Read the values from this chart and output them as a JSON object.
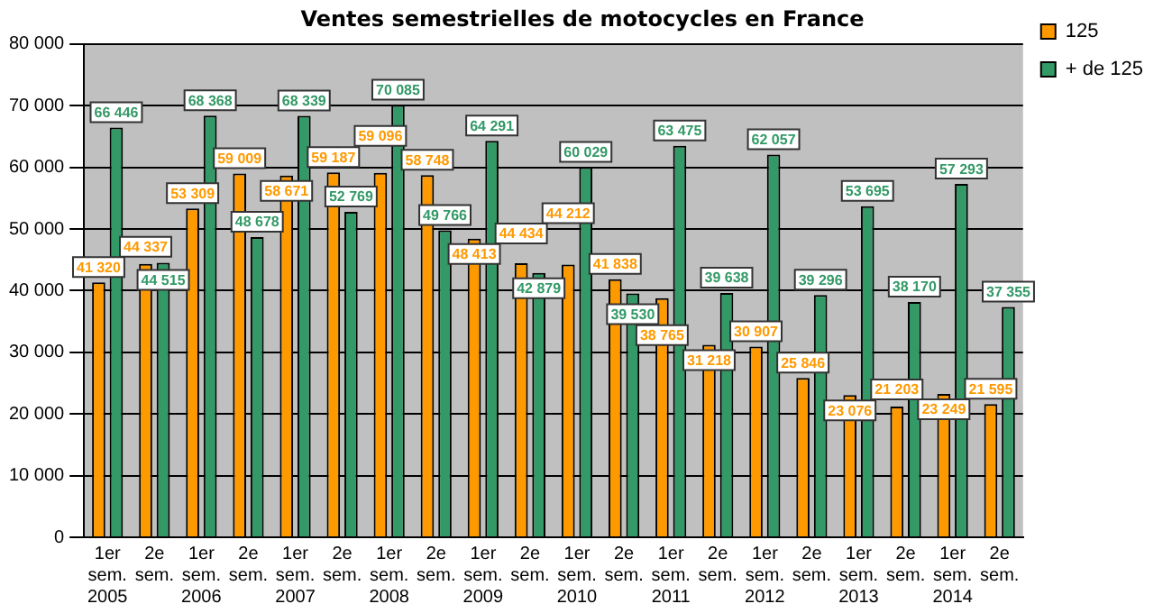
{
  "chart_data": {
    "type": "bar",
    "title": "Ventes semestrielles de motocycles en France",
    "categories": [
      "1er\nsem.\n2005",
      "2e\nsem.",
      "1er\nsem.\n2006",
      "2e\nsem.",
      "1er\nsem.\n2007",
      "2e\nsem.",
      "1er\nsem.\n2008",
      "2e\nsem.",
      "1er\nsem.\n2009",
      "2e\nsem.",
      "1er\nsem.\n2010",
      "2e\nsem.",
      "1er\nsem.\n2011",
      "2e\nsem.",
      "1er\nsem.\n2012",
      "2e\nsem.",
      "1er\nsem.\n2013",
      "2e\nsem.",
      "1er\nsem.\n2014",
      "2e\nsem."
    ],
    "series": [
      {
        "name": "125",
        "color": "#ff9900",
        "values": [
          41320,
          44337,
          53309,
          59009,
          58671,
          59187,
          59096,
          58748,
          48413,
          44434,
          44212,
          41838,
          38765,
          31218,
          30907,
          25846,
          23076,
          21203,
          23249,
          21595
        ],
        "value_labels": [
          "41 320",
          "44 337",
          "53 309",
          "59 009",
          "58 671",
          "59 187",
          "59 096",
          "58 748",
          "48 413",
          "44 434",
          "44 212",
          "41 838",
          "38 765",
          "31 218",
          "30 907",
          "25 846",
          "23 076",
          "21 203",
          "23 249",
          "21 595"
        ]
      },
      {
        "name": "+ de 125",
        "color": "#339966",
        "values": [
          66446,
          44515,
          68368,
          48678,
          68339,
          52769,
          70085,
          49766,
          64291,
          42879,
          60029,
          39530,
          63475,
          39638,
          62057,
          39296,
          53695,
          38170,
          57293,
          37355
        ],
        "value_labels": [
          "66 446",
          "44 515",
          "68 368",
          "48 678",
          "68 339",
          "52 769",
          "70 085",
          "49 766",
          "64 291",
          "42 879",
          "60 029",
          "39 530",
          "63 475",
          "39 638",
          "62 057",
          "39 296",
          "53 695",
          "38 170",
          "57 293",
          "37 355"
        ]
      }
    ],
    "ylim": [
      0,
      80000
    ],
    "yticks": [
      {
        "value": 0,
        "label": "0"
      },
      {
        "value": 10000,
        "label": "10 000"
      },
      {
        "value": 20000,
        "label": "20 000"
      },
      {
        "value": 30000,
        "label": "30 000"
      },
      {
        "value": 40000,
        "label": "40 000"
      },
      {
        "value": 50000,
        "label": "50 000"
      },
      {
        "value": 60000,
        "label": "60 000"
      },
      {
        "value": 70000,
        "label": "70 000"
      },
      {
        "value": 80000,
        "label": "80 000"
      }
    ],
    "grid": "y",
    "legend": "right"
  }
}
